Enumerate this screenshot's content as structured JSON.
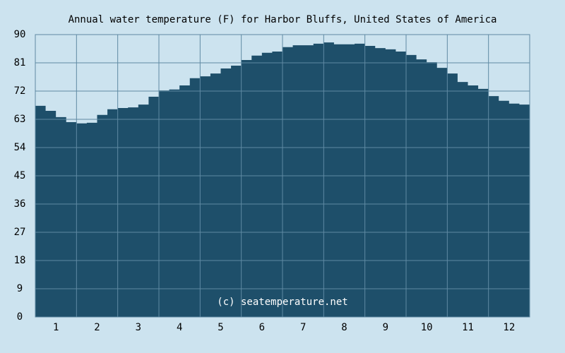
{
  "chart_data": {
    "type": "area",
    "title": "Annual water temperature (F) for Harbor Bluffs, United States of America",
    "annotation": "(c) seatemperature.net",
    "x": [
      0.5,
      0.75,
      1,
      1.25,
      1.5,
      1.75,
      2,
      2.25,
      2.5,
      2.75,
      3,
      3.25,
      3.5,
      3.75,
      4,
      4.25,
      4.5,
      4.75,
      5,
      5.25,
      5.5,
      5.75,
      6,
      6.25,
      6.5,
      6.75,
      7,
      7.25,
      7.5,
      7.75,
      8,
      8.25,
      8.5,
      8.75,
      9,
      9.25,
      9.5,
      9.75,
      10,
      10.25,
      10.5,
      10.75,
      11,
      11.25,
      11.5,
      11.75,
      12,
      12.25,
      12.5
    ],
    "series": [
      {
        "color": "#1e4f6a",
        "values": [
          67.3,
          65.7,
          63.7,
          62.1,
          61.7,
          61.9,
          64.4,
          66.2,
          66.6,
          66.8,
          67.7,
          70.2,
          72.2,
          72.5,
          73.8,
          76.1,
          76.7,
          77.6,
          79.2,
          80.1,
          81.9,
          83.3,
          84.2,
          84.6,
          86.0,
          86.6,
          86.6,
          87.1,
          87.5,
          86.9,
          86.9,
          87.1,
          86.4,
          85.7,
          85.3,
          84.6,
          83.5,
          82.1,
          81.2,
          79.4,
          77.6,
          74.9,
          73.8,
          72.7,
          70.4,
          68.9,
          68.0,
          67.7,
          65.5
        ]
      }
    ],
    "xlim": [
      0.5,
      12.5
    ],
    "xticks": [
      1,
      2,
      3,
      4,
      5,
      6,
      7,
      8,
      9,
      10,
      11,
      12
    ],
    "xgrid": [
      1.5,
      2.5,
      3.5,
      4.5,
      5.5,
      6.5,
      7.5,
      8.5,
      9.5,
      10.5,
      11.5
    ],
    "ylim": [
      0,
      90
    ],
    "yticks": [
      0,
      9,
      18,
      27,
      36,
      45,
      54,
      63,
      72,
      81,
      90
    ],
    "grid": true
  }
}
